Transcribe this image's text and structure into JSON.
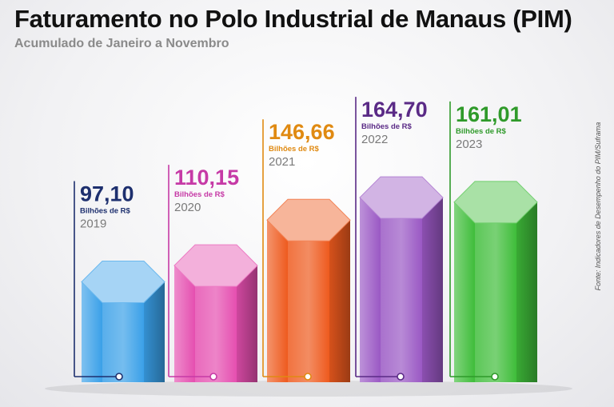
{
  "header": {
    "title": "Faturamento no Polo Industrial de Manaus (PIM)",
    "subtitle": "Acumulado de Janeiro a Novembro"
  },
  "source": "Fonte: Indicadores de Desempenho do PIM/Suframa",
  "chart_data": {
    "type": "bar",
    "unit_label": "Bilhões de R$",
    "categories": [
      "2019",
      "2020",
      "2021",
      "2022",
      "2023"
    ],
    "values": [
      97.1,
      110.15,
      146.66,
      164.7,
      161.01
    ],
    "value_labels": [
      "97,10",
      "110,15",
      "146,66",
      "164,70",
      "161,01"
    ],
    "colors": [
      "#3aa0e8",
      "#e54fb0",
      "#ee5a1e",
      "#9a58c4",
      "#3fbd3a"
    ],
    "label_colors": [
      "#1d2f6e",
      "#c63aa6",
      "#e08a12",
      "#5a2a86",
      "#2f9a2a"
    ],
    "ylim": [
      0,
      200
    ],
    "legend": "none",
    "grid": false
  }
}
